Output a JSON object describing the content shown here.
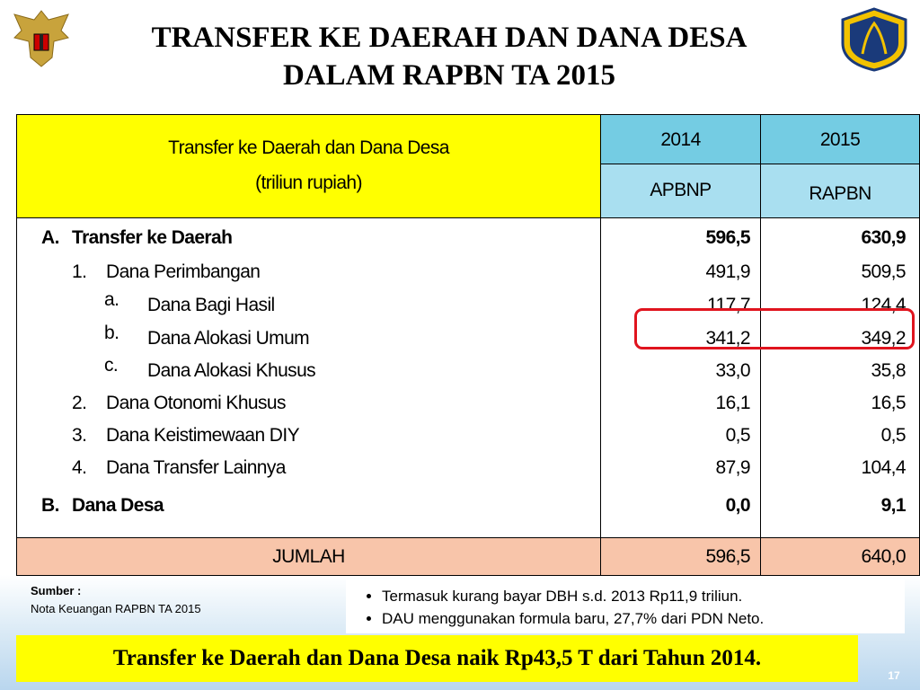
{
  "header": {
    "title": [
      "TRANSFER KE DAERAH DAN DANA DESA",
      "DALAM RAPBN TA 2015"
    ]
  },
  "table": {
    "header": {
      "label": [
        "Transfer ke Daerah dan Dana Desa",
        "(triliun rupiah)"
      ],
      "years": [
        "2014",
        "2015"
      ],
      "budgets": [
        "APBNP",
        "RAPBN"
      ]
    },
    "rows": [
      {
        "number": "A.",
        "label": "Transfer ke Daerah",
        "values": [
          "596,5",
          "630,9"
        ]
      },
      {
        "number": "1.",
        "label": "Dana Perimbangan",
        "values": [
          "491,9",
          "509,5"
        ]
      },
      {
        "number": "a.",
        "label": "Dana Bagi Hasil",
        "values": [
          "117,7",
          "124,4"
        ]
      },
      {
        "number": "b.",
        "label": "Dana Alokasi Umum",
        "values": [
          "341,2",
          "349,2"
        ]
      },
      {
        "number": "c.",
        "label": "Dana Alokasi Khusus",
        "values": [
          "33,0",
          "35,8"
        ]
      },
      {
        "number": "2.",
        "label": "Dana Otonomi Khusus",
        "values": [
          "16,1",
          "16,5"
        ]
      },
      {
        "number": "3.",
        "label": "Dana Keistimewaan DIY",
        "values": [
          "0,5",
          "0,5"
        ]
      },
      {
        "number": "4.",
        "label": "Dana Transfer Lainnya",
        "values": [
          "87,9",
          "104,4"
        ]
      },
      {
        "number": "B.",
        "label": "Dana Desa",
        "values": [
          "0,0",
          "9,1"
        ]
      }
    ],
    "total": {
      "label": "JUMLAH",
      "values": [
        "596,5",
        "640,0"
      ]
    }
  },
  "source": {
    "label": "Sumber :",
    "text": "Nota Keuangan RAPBN TA 2015"
  },
  "notes": [
    "Termasuk kurang bayar DBH s.d. 2013 Rp11,9 triliun.",
    "DAU menggunakan formula baru, 27,7% dari PDN Neto."
  ],
  "conclusion": "Transfer ke Daerah dan Dana Desa naik Rp43,5 T dari Tahun 2014.",
  "page_number": "17"
}
